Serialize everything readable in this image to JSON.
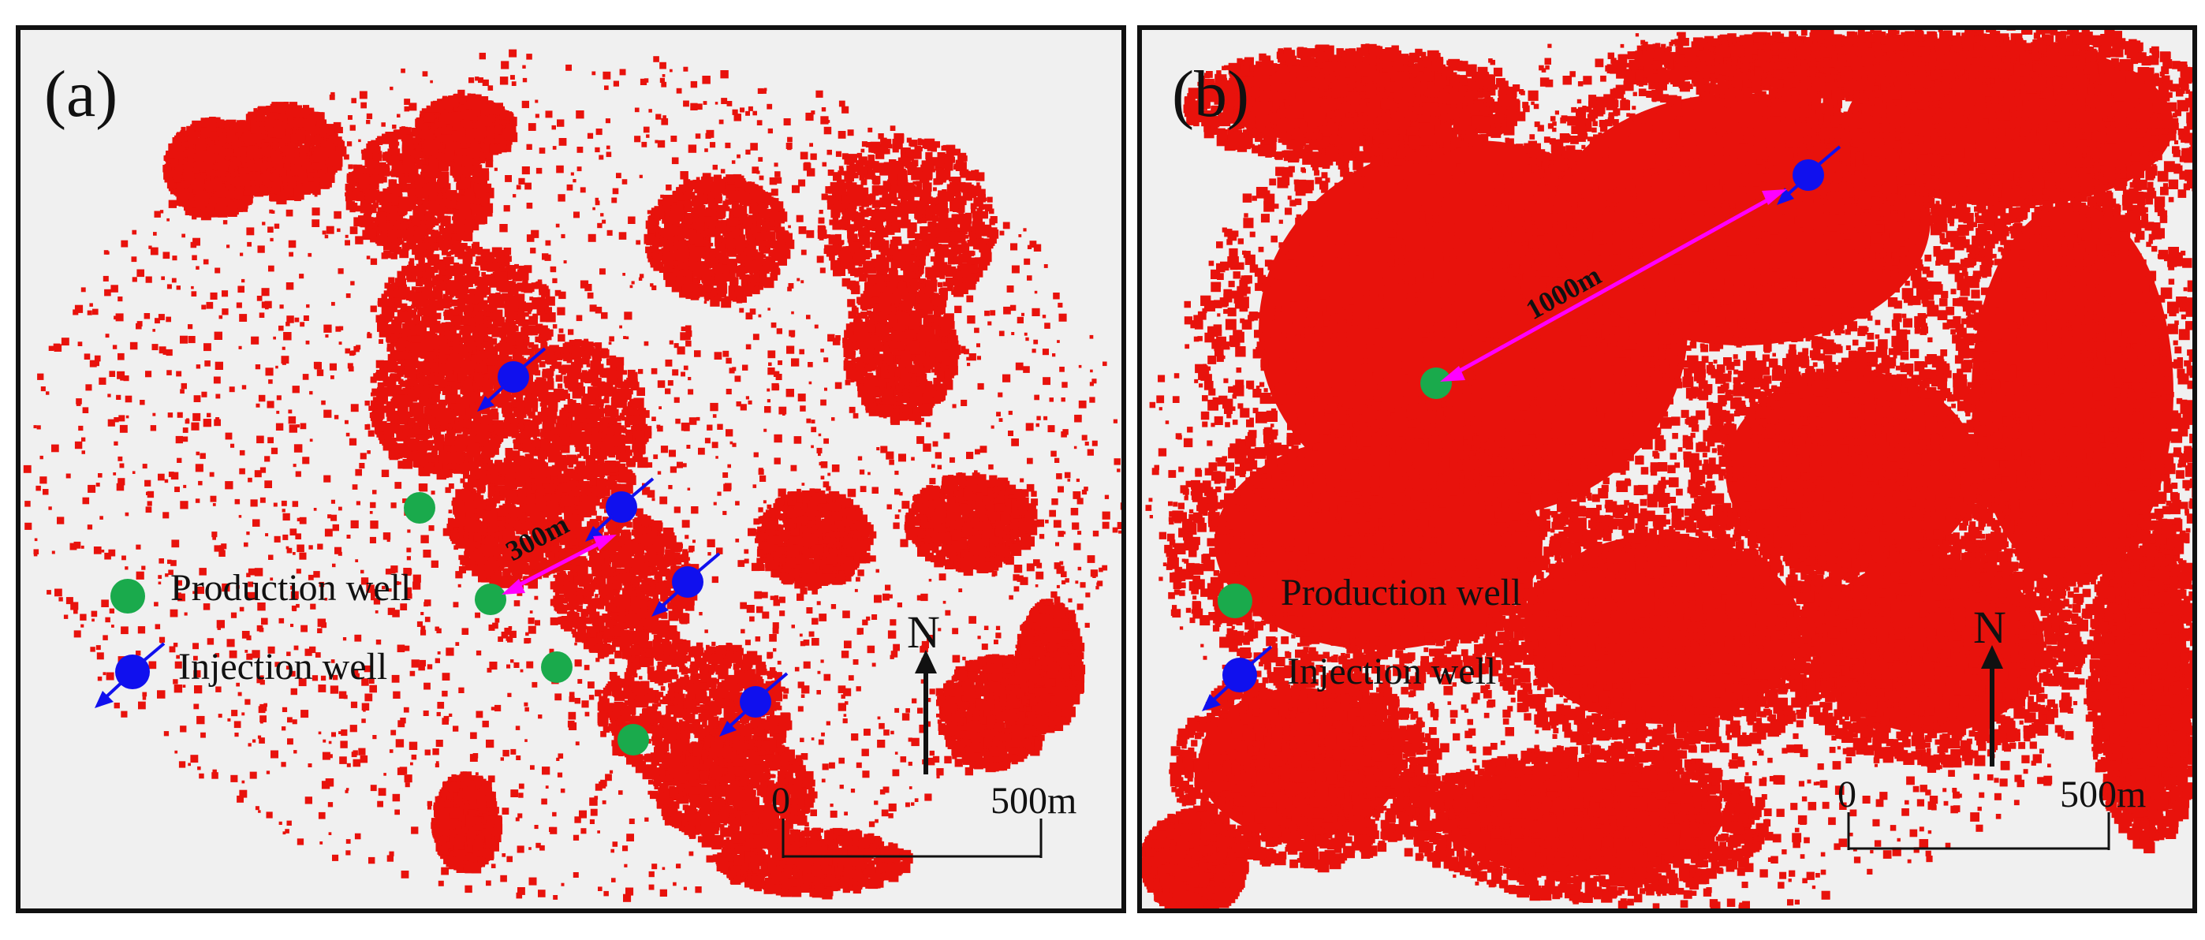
{
  "panels": [
    {
      "letter": "(a)",
      "legend": {
        "production": "Production well",
        "injection": "Injection well"
      },
      "north": "N",
      "scale": {
        "zero": "0",
        "end": "500m"
      },
      "distance_label": "300m"
    },
    {
      "letter": "(b)",
      "legend": {
        "production": "Production well",
        "injection": "Injection well"
      },
      "north": "N",
      "scale": {
        "zero": "0",
        "end": "500m"
      },
      "distance_label": "1000m"
    }
  ],
  "colors": {
    "background": "#f0f0f0",
    "reservoir": "#e8120c",
    "production_well": "#1aaa4c",
    "injection_well": "#1010ee",
    "distance_arrow": "#ff00ff"
  }
}
